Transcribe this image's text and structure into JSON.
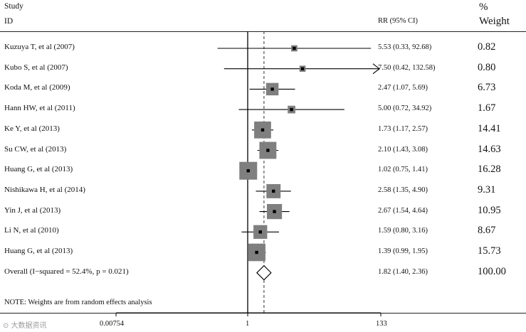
{
  "header": {
    "study": "Study",
    "id": "ID",
    "rr": "RR (95% CI)",
    "pct": "%",
    "weight": "Weight"
  },
  "note": "NOTE: Weights are from random effects analysis",
  "watermark": "⊙ 大数据资讯",
  "chart_data": {
    "type": "forest",
    "x_scale": "log",
    "x_ticks": [
      "0.00754",
      "1",
      "133"
    ],
    "null_line": 1,
    "pooled_line": 1.82,
    "studies": [
      {
        "label": "Kuzuya T, et al (2007)",
        "rr": 5.53,
        "lo": 0.33,
        "hi": 92.68,
        "ci_text": "5.53 (0.33, 92.68)",
        "weight": "0.82"
      },
      {
        "label": "Kubo S, et al (2007)",
        "rr": 7.5,
        "lo": 0.42,
        "hi": 132.58,
        "ci_text": "7.50 (0.42, 132.58)",
        "weight": "0.80",
        "arrow": true
      },
      {
        "label": "Koda M, et al (2009)",
        "rr": 2.47,
        "lo": 1.07,
        "hi": 5.69,
        "ci_text": "2.47 (1.07, 5.69)",
        "weight": "6.73"
      },
      {
        "label": "Hann HW, et al (2011)",
        "rr": 5.0,
        "lo": 0.72,
        "hi": 34.92,
        "ci_text": "5.00 (0.72, 34.92)",
        "weight": "1.67"
      },
      {
        "label": "Ke Y, et al (2013)",
        "rr": 1.73,
        "lo": 1.17,
        "hi": 2.57,
        "ci_text": "1.73 (1.17, 2.57)",
        "weight": "14.41"
      },
      {
        "label": "Su CW, et al (2013)",
        "rr": 2.1,
        "lo": 1.43,
        "hi": 3.08,
        "ci_text": "2.10 (1.43, 3.08)",
        "weight": "14.63"
      },
      {
        "label": "Huang G, et al (2013)",
        "rr": 1.02,
        "lo": 0.75,
        "hi": 1.41,
        "ci_text": "1.02 (0.75, 1.41)",
        "weight": "16.28"
      },
      {
        "label": "Nishikawa H, et al (2014)",
        "rr": 2.58,
        "lo": 1.35,
        "hi": 4.9,
        "ci_text": "2.58 (1.35, 4.90)",
        "weight": "9.31"
      },
      {
        "label": "Yin J, et al (2013)",
        "rr": 2.67,
        "lo": 1.54,
        "hi": 4.64,
        "ci_text": "2.67 (1.54, 4.64)",
        "weight": "10.95"
      },
      {
        "label": "Li N, et al (2010)",
        "rr": 1.59,
        "lo": 0.8,
        "hi": 3.16,
        "ci_text": "1.59 (0.80, 3.16)",
        "weight": "8.67"
      },
      {
        "label": "Huang G, et al (2013)",
        "rr": 1.39,
        "lo": 0.99,
        "hi": 1.95,
        "ci_text": "1.39 (0.99, 1.95)",
        "weight": "15.73"
      }
    ],
    "overall": {
      "label": "Overall  (I−squared = 52.4%, p = 0.021)",
      "rr": 1.82,
      "lo": 1.4,
      "hi": 2.36,
      "ci_text": "1.82 (1.40, 2.36)",
      "weight": "100.00"
    }
  }
}
